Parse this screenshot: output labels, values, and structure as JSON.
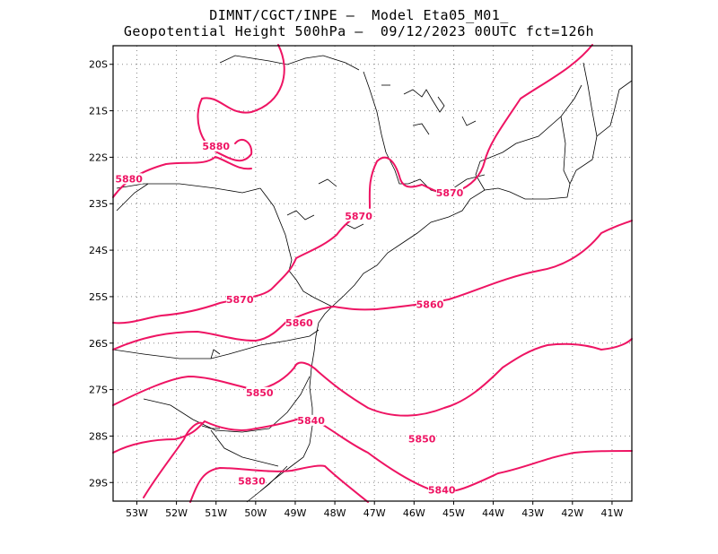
{
  "header": {
    "line1": "DIMNT/CGCT/INPE –  Model Eta05_M01_",
    "line2": "Geopotential Height 500hPa –  09/12/2023 00UTC fct=126h"
  },
  "map": {
    "region": "Southern/southeastern Brazil",
    "lat_range": [
      -29.4,
      -19.6
    ],
    "lon_range": [
      -53.6,
      -40.5
    ],
    "lat_ticks": [
      "20S",
      "21S",
      "22S",
      "23S",
      "24S",
      "25S",
      "26S",
      "27S",
      "28S",
      "29S"
    ],
    "lon_ticks": [
      "53W",
      "52W",
      "51W",
      "50W",
      "49W",
      "48W",
      "47W",
      "46W",
      "45W",
      "44W",
      "43W",
      "42W",
      "41W"
    ],
    "grid": "dotted",
    "contour_color": "#ee1463",
    "contour_labels": [
      {
        "text": "5880",
        "lon": -51.0,
        "lat": -21.8
      },
      {
        "text": "5880",
        "lon": -53.2,
        "lat": -22.5
      },
      {
        "text": "5870",
        "lon": -47.4,
        "lat": -23.3
      },
      {
        "text": "5870",
        "lon": -45.1,
        "lat": -22.8
      },
      {
        "text": "5870",
        "lon": -50.4,
        "lat": -25.1
      },
      {
        "text": "5860",
        "lon": -48.9,
        "lat": -25.6
      },
      {
        "text": "5860",
        "lon": -45.6,
        "lat": -25.2
      },
      {
        "text": "5850",
        "lon": -49.9,
        "lat": -27.1
      },
      {
        "text": "5850",
        "lon": -45.8,
        "lat": -28.1
      },
      {
        "text": "5840",
        "lon": -48.6,
        "lat": -27.7
      },
      {
        "text": "5840",
        "lon": -45.3,
        "lat": -29.2
      },
      {
        "text": "5830",
        "lon": -50.1,
        "lat": -29.0
      }
    ]
  }
}
